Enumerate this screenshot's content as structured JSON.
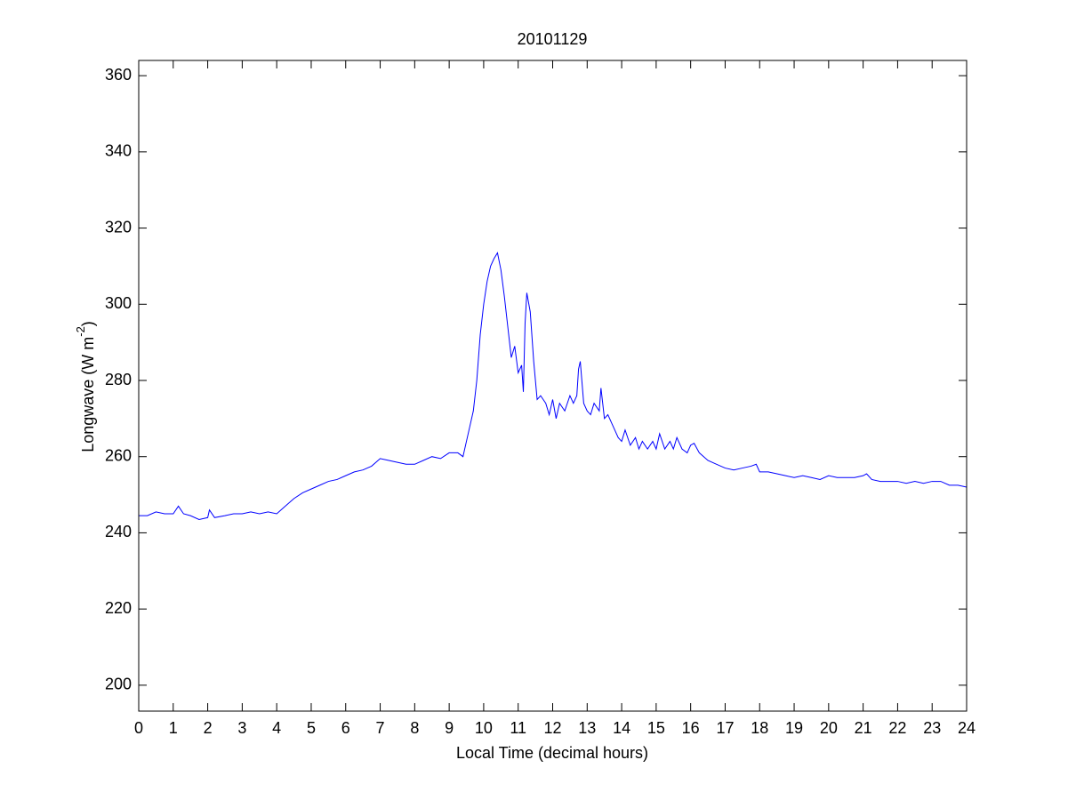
{
  "chart_data": {
    "type": "line",
    "title": "20101129",
    "xlabel": "Local Time (decimal hours)",
    "ylabel": [
      "Longwave (W m",
      "-2",
      ")"
    ],
    "xlim": [
      0,
      24
    ],
    "ylim": [
      193.2,
      364
    ],
    "xticks": [
      0,
      1,
      2,
      3,
      4,
      5,
      6,
      7,
      8,
      9,
      10,
      11,
      12,
      13,
      14,
      15,
      16,
      17,
      18,
      19,
      20,
      21,
      22,
      23,
      24
    ],
    "yticks": [
      200,
      220,
      240,
      260,
      280,
      300,
      320,
      340,
      360
    ],
    "grid": false,
    "x": [
      0,
      0.25,
      0.5,
      0.75,
      1.0,
      1.15,
      1.3,
      1.5,
      1.75,
      2.0,
      2.05,
      2.2,
      2.5,
      2.75,
      3.0,
      3.25,
      3.5,
      3.75,
      4.0,
      4.25,
      4.5,
      4.75,
      5.0,
      5.25,
      5.5,
      5.75,
      6.0,
      6.25,
      6.5,
      6.75,
      7.0,
      7.25,
      7.5,
      7.75,
      8.0,
      8.25,
      8.5,
      8.75,
      9.0,
      9.25,
      9.4,
      9.5,
      9.6,
      9.7,
      9.8,
      9.9,
      10.0,
      10.1,
      10.2,
      10.3,
      10.4,
      10.5,
      10.6,
      10.7,
      10.8,
      10.9,
      11.0,
      11.1,
      11.15,
      11.2,
      11.25,
      11.35,
      11.45,
      11.55,
      11.65,
      11.8,
      11.9,
      12.0,
      12.1,
      12.2,
      12.35,
      12.5,
      12.6,
      12.7,
      12.75,
      12.8,
      12.9,
      13.0,
      13.1,
      13.2,
      13.35,
      13.4,
      13.5,
      13.6,
      13.75,
      13.9,
      14.0,
      14.1,
      14.25,
      14.4,
      14.5,
      14.6,
      14.75,
      14.9,
      15.0,
      15.1,
      15.25,
      15.4,
      15.5,
      15.6,
      15.75,
      15.9,
      16.0,
      16.1,
      16.25,
      16.5,
      16.75,
      17.0,
      17.25,
      17.5,
      17.75,
      17.9,
      18.0,
      18.25,
      18.5,
      18.75,
      19.0,
      19.25,
      19.5,
      19.75,
      20.0,
      20.25,
      20.5,
      20.75,
      21.0,
      21.1,
      21.25,
      21.5,
      21.75,
      22.0,
      22.25,
      22.5,
      22.75,
      23.0,
      23.25,
      23.5,
      23.75,
      24.0
    ],
    "series": [
      {
        "name": "Longwave",
        "color": "#0000ff",
        "values": [
          244.5,
          244.5,
          245.5,
          245,
          245,
          247,
          245,
          244.5,
          243.5,
          244,
          246,
          244,
          244.5,
          245,
          245,
          245.5,
          245,
          245.5,
          245,
          247,
          249,
          250.5,
          251.5,
          252.5,
          253.5,
          254,
          255,
          256,
          256.5,
          257.5,
          259.5,
          259,
          258.5,
          258,
          258,
          259,
          260,
          259.5,
          261,
          261,
          260,
          264,
          268,
          272,
          280,
          292,
          300,
          306,
          310,
          312,
          313.5,
          309,
          302,
          294,
          286,
          289,
          282,
          284,
          277,
          295,
          303,
          298,
          285,
          275,
          276,
          274,
          271,
          275,
          270,
          274,
          272,
          276,
          274,
          276,
          283,
          285,
          274,
          272,
          271,
          274,
          272,
          278,
          270,
          271,
          268,
          265,
          264,
          267,
          263,
          265,
          262,
          264,
          262,
          264,
          262,
          266,
          262,
          264,
          262,
          265,
          262,
          261,
          263,
          263.5,
          261,
          259,
          258,
          257,
          256.5,
          257,
          257.5,
          258,
          256,
          256,
          255.5,
          255,
          254.5,
          255,
          254.5,
          254,
          255,
          254.5,
          254.5,
          254.5,
          255,
          255.5,
          254,
          253.5,
          253.5,
          253.5,
          253,
          253.5,
          253,
          253.5,
          253.5,
          252.5,
          252.5,
          252
        ]
      }
    ]
  }
}
